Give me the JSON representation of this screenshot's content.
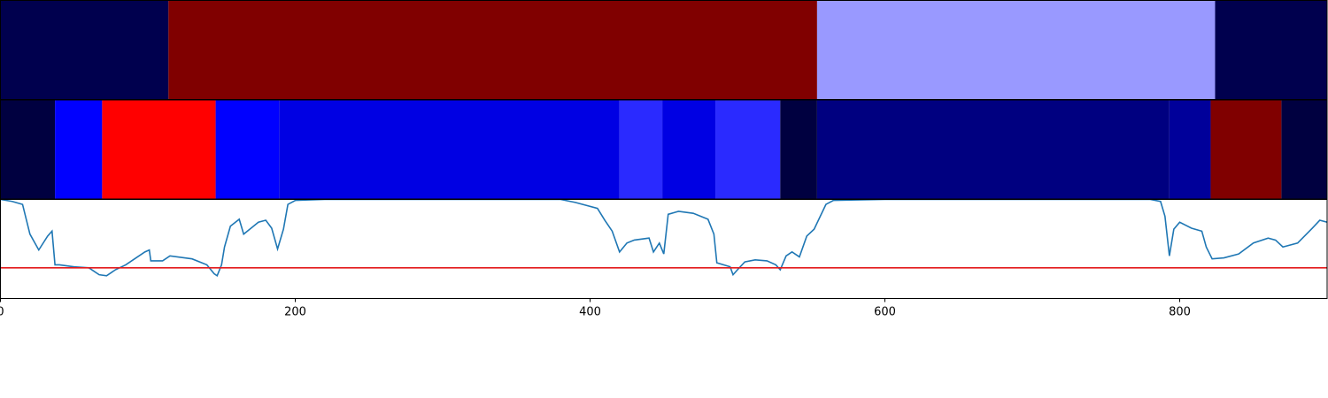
{
  "chart_data": [
    {
      "type": "segments",
      "xlim": [
        0,
        900
      ],
      "bins": [
        0,
        114,
        554,
        824,
        900
      ],
      "colors": [
        "#00004e",
        "#800000",
        "#9999ff",
        "#00004e"
      ]
    },
    {
      "type": "segments",
      "xlim": [
        0,
        900
      ],
      "bins": [
        0,
        37,
        69,
        146,
        189,
        420,
        449,
        485,
        529,
        554,
        793,
        821,
        869,
        900
      ],
      "colors": [
        "#000040",
        "#0000ff",
        "#ff0000",
        "#0000ff",
        "#0000e3",
        "#2a2aff",
        "#0000e3",
        "#2a2aff",
        "#000040",
        "#000080",
        "#00009a",
        "#800000",
        "#000040"
      ]
    },
    {
      "type": "line",
      "xlim": [
        0,
        900
      ],
      "ylim": [
        0,
        1
      ],
      "xticks": [
        0,
        200,
        400,
        600,
        800
      ],
      "color": "#1f77b4",
      "threshold": 0.31,
      "threshold_color": "#e31a1c",
      "x": [
        0,
        8,
        15,
        20,
        26,
        32,
        35,
        37,
        40,
        50,
        60,
        67,
        72,
        78,
        85,
        92,
        98,
        101,
        102,
        110,
        115,
        130,
        140,
        145,
        147,
        150,
        152,
        156,
        162,
        165,
        170,
        175,
        180,
        184,
        188,
        192,
        195,
        200,
        220,
        300,
        380,
        390,
        405,
        410,
        415,
        420,
        425,
        430,
        440,
        443,
        447,
        450,
        453,
        460,
        470,
        480,
        484,
        486,
        495,
        497,
        500,
        505,
        512,
        520,
        526,
        529,
        533,
        537,
        542,
        547,
        552,
        560,
        565,
        600,
        700,
        780,
        787,
        790,
        793,
        796,
        800,
        808,
        815,
        818,
        822,
        830,
        840,
        850,
        860,
        865,
        870,
        880,
        890,
        895,
        900
      ],
      "values": [
        1.0,
        0.98,
        0.95,
        0.65,
        0.49,
        0.63,
        0.68,
        0.34,
        0.34,
        0.32,
        0.31,
        0.24,
        0.23,
        0.29,
        0.34,
        0.41,
        0.47,
        0.49,
        0.38,
        0.38,
        0.43,
        0.4,
        0.34,
        0.25,
        0.23,
        0.34,
        0.52,
        0.73,
        0.8,
        0.65,
        0.71,
        0.77,
        0.79,
        0.71,
        0.5,
        0.7,
        0.95,
        0.99,
        1.0,
        1.0,
        1.0,
        0.97,
        0.91,
        0.79,
        0.68,
        0.47,
        0.56,
        0.59,
        0.61,
        0.47,
        0.56,
        0.45,
        0.85,
        0.88,
        0.86,
        0.8,
        0.65,
        0.36,
        0.32,
        0.24,
        0.29,
        0.37,
        0.39,
        0.38,
        0.34,
        0.29,
        0.43,
        0.47,
        0.42,
        0.63,
        0.7,
        0.95,
        0.99,
        1.0,
        1.0,
        1.0,
        0.98,
        0.83,
        0.43,
        0.7,
        0.77,
        0.71,
        0.68,
        0.52,
        0.4,
        0.41,
        0.45,
        0.56,
        0.61,
        0.59,
        0.52,
        0.56,
        0.71,
        0.79,
        0.77
      ]
    }
  ]
}
